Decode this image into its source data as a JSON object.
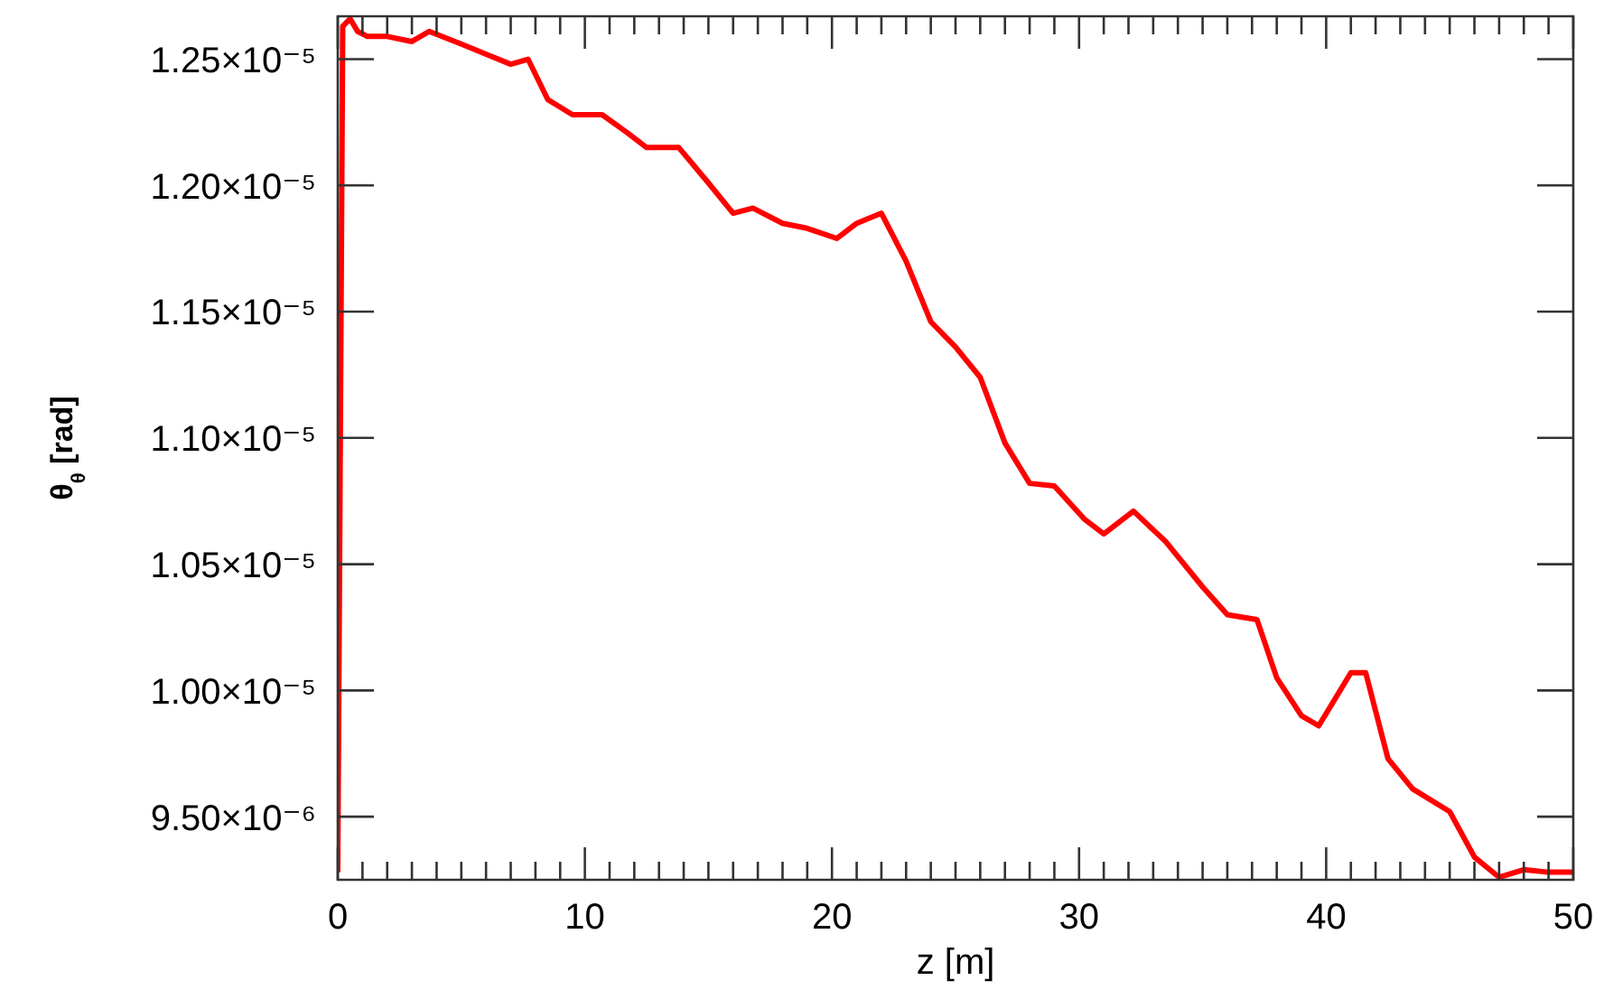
{
  "chart_data": {
    "type": "line",
    "xlabel": "z [m]",
    "ylabel": "θ$_{θ}$ [rad]",
    "xlim": [
      0,
      50
    ],
    "ylim": [
      9.25e-06,
      1.267e-05
    ],
    "xticks": [
      0,
      {
        "value": 1,
        "label": null
      },
      {
        "value": 2,
        "label": null
      },
      {
        "value": 3,
        "label": null
      },
      {
        "value": 4,
        "label": null
      },
      {
        "value": 5,
        "label": null
      },
      {
        "value": 6,
        "label": null
      },
      {
        "value": 7,
        "label": null
      },
      {
        "value": 8,
        "label": null
      },
      {
        "value": 9,
        "label": null
      },
      10,
      {
        "value": 11,
        "label": null
      },
      {
        "value": 12,
        "label": null
      },
      {
        "value": 13,
        "label": null
      },
      {
        "value": 14,
        "label": null
      },
      {
        "value": 15,
        "label": null
      },
      {
        "value": 16,
        "label": null
      },
      {
        "value": 17,
        "label": null
      },
      {
        "value": 18,
        "label": null
      },
      {
        "value": 19,
        "label": null
      },
      20,
      {
        "value": 21,
        "label": null
      },
      {
        "value": 22,
        "label": null
      },
      {
        "value": 23,
        "label": null
      },
      {
        "value": 24,
        "label": null
      },
      {
        "value": 25,
        "label": null
      },
      {
        "value": 26,
        "label": null
      },
      {
        "value": 27,
        "label": null
      },
      {
        "value": 28,
        "label": null
      },
      {
        "value": 29,
        "label": null
      },
      30,
      {
        "value": 31,
        "label": null
      },
      {
        "value": 32,
        "label": null
      },
      {
        "value": 33,
        "label": null
      },
      {
        "value": 34,
        "label": null
      },
      {
        "value": 35,
        "label": null
      },
      {
        "value": 36,
        "label": null
      },
      {
        "value": 37,
        "label": null
      },
      {
        "value": 38,
        "label": null
      },
      {
        "value": 39,
        "label": null
      },
      40,
      {
        "value": 41,
        "label": null
      },
      {
        "value": 42,
        "label": null
      },
      {
        "value": 43,
        "label": null
      },
      {
        "value": 44,
        "label": null
      },
      {
        "value": 45,
        "label": null
      },
      {
        "value": 46,
        "label": null
      },
      {
        "value": 47,
        "label": null
      },
      {
        "value": 48,
        "label": null
      },
      {
        "value": 49,
        "label": null
      },
      50
    ],
    "yticks": [
      {
        "value": 9.5e-06,
        "label": "9.50×10⁻⁶"
      },
      {
        "value": 1e-05,
        "label": "1.00×10⁻⁵"
      },
      {
        "value": 1.05e-05,
        "label": "1.05×10⁻⁵"
      },
      {
        "value": 1.1e-05,
        "label": "1.10×10⁻⁵"
      },
      {
        "value": 1.15e-05,
        "label": "1.15×10⁻⁵"
      },
      {
        "value": 1.2e-05,
        "label": "1.20×10⁻⁵"
      },
      {
        "value": 1.25e-05,
        "label": "1.25×10⁻⁵"
      }
    ],
    "legend": false,
    "marker": "none",
    "line_style": "solid",
    "series": [
      {
        "color": "#ff0000",
        "x": [
          0,
          0.2,
          0.5,
          0.8,
          1.2,
          2,
          3,
          3.7,
          5,
          6,
          7,
          7.7,
          8.5,
          9.5,
          10.7,
          11.7,
          12.5,
          13.8,
          15,
          16,
          16.8,
          18,
          19,
          20.2,
          21,
          22,
          23,
          24,
          25,
          26,
          27,
          28,
          29,
          30.2,
          31,
          32.2,
          33.5,
          35,
          36,
          37.2,
          38,
          39,
          39.7,
          41,
          41.6,
          42.5,
          43.5,
          45,
          46,
          47,
          48,
          49,
          50
        ],
        "values": [
          9.28e-06,
          1.263e-05,
          1.266e-05,
          1.261e-05,
          1.259e-05,
          1.259e-05,
          1.257e-05,
          1.261e-05,
          1.256e-05,
          1.252e-05,
          1.248e-05,
          1.25e-05,
          1.234e-05,
          1.228e-05,
          1.228e-05,
          1.221e-05,
          1.215e-05,
          1.215e-05,
          1.201e-05,
          1.189e-05,
          1.191e-05,
          1.185e-05,
          1.183e-05,
          1.179e-05,
          1.185e-05,
          1.189e-05,
          1.17e-05,
          1.146e-05,
          1.136e-05,
          1.124e-05,
          1.098e-05,
          1.082e-05,
          1.081e-05,
          1.068e-05,
          1.062e-05,
          1.071e-05,
          1.059e-05,
          1.041e-05,
          1.03e-05,
          1.028e-05,
          1.005e-05,
          9.9e-06,
          9.86e-06,
          1.007e-05,
          1.007e-05,
          9.73e-06,
          9.61e-06,
          9.52e-06,
          9.34e-06,
          9.26e-06,
          9.29e-06,
          9.28e-06,
          9.28e-06
        ]
      }
    ]
  }
}
